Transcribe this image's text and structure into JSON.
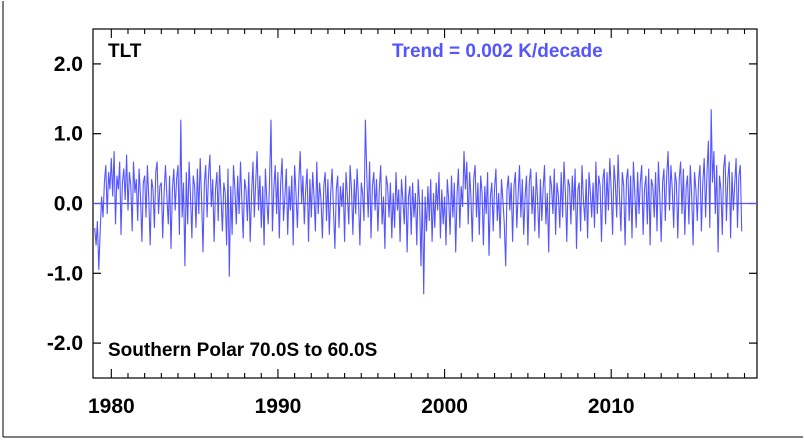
{
  "chart_data": {
    "type": "line",
    "title": "",
    "xlabel": "",
    "ylabel": "",
    "xlim": [
      1978.9,
      2018.75
    ],
    "ylim": [
      -2.5,
      2.5
    ],
    "x_ticks": [
      1980,
      1990,
      2000,
      2010
    ],
    "y_ticks": [
      2.0,
      1.0,
      0.0,
      -1.0,
      -2.0
    ],
    "x_tick_labels": [
      "1980",
      "1990",
      "2000",
      "2010"
    ],
    "y_tick_labels": [
      "2.0",
      "1.0",
      "0.0",
      "-1.0",
      "-2.0"
    ],
    "grid": false,
    "zero_line": true,
    "series_color": "#5555ff",
    "annotations": {
      "dataset": "TLT",
      "trend": "Trend =  0.002 K/decade",
      "region": "Southern Polar  70.0S to  60.0S"
    },
    "series": [
      {
        "x_start": 1979.0,
        "x_step": 0.08333,
        "values": [
          -0.35,
          -0.6,
          -0.25,
          -0.95,
          -0.4,
          0.1,
          -0.2,
          0.3,
          0.55,
          -0.15,
          0.45,
          0.2,
          0.65,
          0.1,
          0.75,
          -0.3,
          0.4,
          0.2,
          0.6,
          -0.45,
          0.3,
          0.5,
          0.05,
          0.7,
          -0.1,
          0.45,
          0.25,
          -0.4,
          0.6,
          0.15,
          0.35,
          -0.25,
          0.5,
          0.1,
          -0.55,
          0.3,
          0.4,
          -0.2,
          0.55,
          0.05,
          -0.6,
          0.35,
          0.2,
          -0.35,
          0.45,
          0.6,
          -0.15,
          0.25,
          0.3,
          -0.5,
          0.15,
          0.55,
          0.1,
          -0.3,
          0.4,
          -0.65,
          0.2,
          0.5,
          -0.1,
          0.35,
          0.55,
          -0.45,
          1.2,
          -0.2,
          0.3,
          -0.9,
          0.45,
          -0.3,
          0.6,
          0.1,
          -0.5,
          0.4,
          0.25,
          -0.35,
          0.5,
          -0.15,
          0.65,
          0.05,
          -0.7,
          0.3,
          0.55,
          -0.2,
          0.4,
          0.7,
          -0.05,
          0.35,
          -0.55,
          0.2,
          0.45,
          -0.25,
          0.55,
          0.1,
          -0.4,
          0.3,
          0.15,
          -0.6,
          0.5,
          -1.05,
          0.25,
          -0.45,
          0.55,
          0.2,
          -0.3,
          0.4,
          -0.15,
          0.6,
          0.05,
          -0.5,
          0.35,
          0.2,
          -0.25,
          0.45,
          -0.55,
          0.15,
          0.6,
          -0.2,
          0.3,
          0.75,
          -0.1,
          0.4,
          -0.35,
          0.25,
          -0.6,
          0.5,
          0.05,
          -0.3,
          0.35,
          1.2,
          -0.4,
          0.2,
          0.55,
          -0.15,
          0.45,
          -0.5,
          0.3,
          0.65,
          -0.25,
          0.1,
          0.5,
          -0.45,
          0.25,
          -0.1,
          0.4,
          -0.6,
          0.55,
          0.15,
          -0.35,
          0.3,
          0.75,
          0.0,
          0.4,
          -0.3,
          0.2,
          0.5,
          -0.55,
          0.35,
          -0.2,
          0.45,
          0.1,
          -0.4,
          0.6,
          -0.15,
          0.3,
          0.05,
          -0.5,
          0.25,
          0.45,
          -0.25,
          0.35,
          -0.45,
          0.15,
          0.5,
          -0.1,
          -0.65,
          0.2,
          0.4,
          -0.35,
          0.25,
          -0.05,
          0.3,
          -0.55,
          0.45,
          0.1,
          -0.3,
          0.55,
          0.2,
          -0.45,
          0.35,
          -0.15,
          0.5,
          0.05,
          -0.6,
          0.3,
          0.15,
          -0.25,
          1.2,
          0.4,
          -0.2,
          0.6,
          -0.5,
          0.25,
          0.45,
          -0.1,
          0.35,
          -0.4,
          0.2,
          0.55,
          -0.3,
          0.1,
          -0.65,
          0.4,
          0.25,
          -0.2,
          0.3,
          -0.5,
          0.15,
          -0.35,
          0.45,
          -0.1,
          0.2,
          -0.55,
          0.35,
          0.05,
          -0.3,
          0.4,
          -0.7,
          0.1,
          0.25,
          -0.45,
          0.3,
          -0.2,
          0.15,
          -0.6,
          0.35,
          0.0,
          -0.9,
          0.2,
          -1.3,
          0.1,
          -0.4,
          0.25,
          -0.25,
          0.35,
          -0.55,
          0.15,
          -0.35,
          0.3,
          -0.1,
          0.45,
          -0.5,
          0.2,
          -0.3,
          0.1,
          -0.6,
          0.35,
          0.05,
          -0.45,
          0.4,
          -0.2,
          0.3,
          -0.7,
          0.15,
          0.5,
          -0.35,
          0.25,
          -0.05,
          0.75,
          0.2,
          0.6,
          -0.3,
          0.45,
          0.1,
          -0.55,
          0.35,
          0.55,
          -0.2,
          0.3,
          -0.45,
          0.4,
          0.15,
          -0.6,
          0.25,
          -0.15,
          0.45,
          -0.75,
          0.1,
          0.3,
          -0.4,
          0.2,
          0.5,
          -0.25,
          0.15,
          -0.5,
          0.35,
          0.05,
          -0.3,
          -0.9,
          0.2,
          0.4,
          -0.1,
          0.3,
          -0.55,
          0.25,
          0.45,
          -0.35,
          0.15,
          0.55,
          -0.2,
          0.35,
          -0.45,
          0.1,
          0.4,
          -0.6,
          0.3,
          0.5,
          -0.15,
          0.25,
          -0.4,
          0.45,
          0.05,
          -0.5,
          0.35,
          -0.25,
          0.2,
          0.55,
          -0.3,
          0.15,
          -0.7,
          0.4,
          0.25,
          -0.15,
          0.5,
          -0.45,
          0.3,
          0.1,
          -0.35,
          0.45,
          -0.2,
          0.6,
          0.15,
          -0.55,
          0.35,
          0.25,
          -0.3,
          0.4,
          -0.1,
          0.5,
          -0.65,
          0.2,
          0.3,
          -0.4,
          0.55,
          0.05,
          -0.25,
          0.35,
          -0.5,
          0.45,
          0.15,
          -0.2,
          0.3,
          -0.35,
          0.6,
          -0.15,
          0.4,
          0.25,
          -0.55,
          0.35,
          0.5,
          -0.3,
          0.45,
          -0.1,
          0.65,
          0.2,
          -0.45,
          0.55,
          0.3,
          -0.2,
          0.7,
          0.1,
          -0.4,
          0.45,
          0.25,
          -0.6,
          0.35,
          0.5,
          -0.25,
          0.4,
          -0.5,
          0.6,
          0.15,
          -0.35,
          0.45,
          -0.15,
          0.3,
          0.55,
          -0.45,
          0.2,
          0.4,
          -0.3,
          0.5,
          -0.6,
          0.35,
          0.25,
          -0.2,
          0.45,
          -0.4,
          0.6,
          0.1,
          -0.55,
          0.3,
          0.5,
          -0.25,
          0.4,
          0.75,
          -0.1,
          0.55,
          0.2,
          -0.35,
          0.45,
          0.3,
          -0.5,
          0.35,
          0.6,
          -0.15,
          0.5,
          -0.45,
          0.25,
          0.4,
          -0.3,
          0.55,
          0.1,
          -0.6,
          0.45,
          0.2,
          -0.25,
          0.35,
          0.55,
          -0.4,
          0.3,
          0.65,
          -0.2,
          0.45,
          0.9,
          -0.35,
          1.35,
          0.3,
          0.75,
          -0.15,
          0.55,
          -0.7,
          0.4,
          0.2,
          -0.45,
          0.5,
          0.7,
          -0.25,
          0.35,
          0.6,
          -0.5,
          0.45,
          -0.1,
          0.3,
          0.65,
          -0.35,
          0.4,
          0.55,
          -0.4
        ]
      }
    ]
  }
}
